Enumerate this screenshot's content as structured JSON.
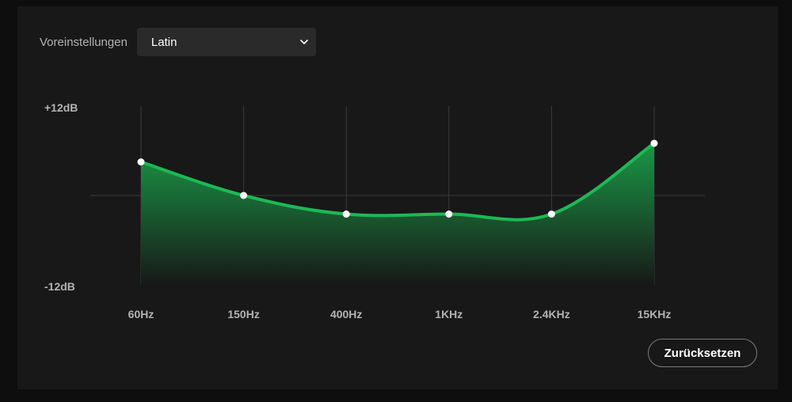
{
  "presets": {
    "label": "Voreinstellungen",
    "selected": "Latin"
  },
  "scale": {
    "max_label": "+12dB",
    "min_label": "-12dB",
    "max_db": 12,
    "min_db": -12
  },
  "bands": [
    {
      "label": "60Hz",
      "gain_db": 4.5
    },
    {
      "label": "150Hz",
      "gain_db": 0.0
    },
    {
      "label": "400Hz",
      "gain_db": -2.5
    },
    {
      "label": "1KHz",
      "gain_db": -2.5
    },
    {
      "label": "2.4KHz",
      "gain_db": -2.5
    },
    {
      "label": "15KHz",
      "gain_db": 7.0
    }
  ],
  "reset_button": {
    "label": "Zurücksetzen"
  },
  "colors": {
    "accent": "#1db954",
    "fill_top": "#1a9e48",
    "fill_bottom": "#181818",
    "grid": "#3a3a3a"
  },
  "icons": {
    "dropdown": "chevron-down-icon"
  }
}
